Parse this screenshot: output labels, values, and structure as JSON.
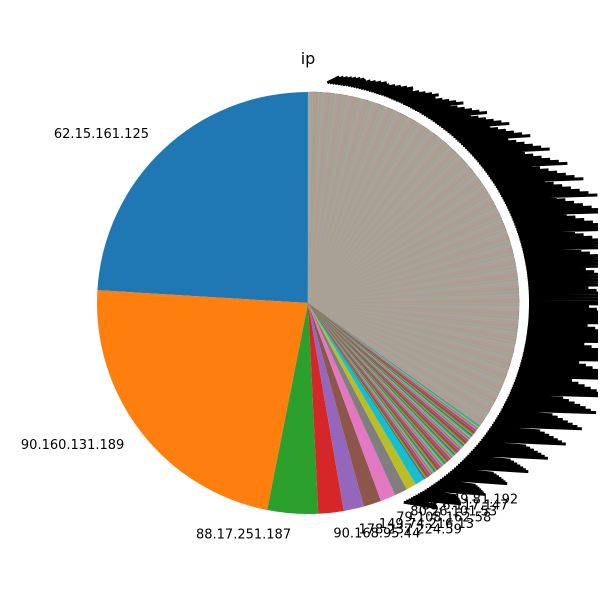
{
  "chart_data": {
    "type": "pie",
    "title": "ip",
    "start_angle_deg": 90,
    "direction": "counterclockwise",
    "slices": [
      {
        "label": "62.15.161.125",
        "value": 124,
        "color": "#1f77b4"
      },
      {
        "label": "90.160.131.189",
        "value": 118,
        "color": "#ff7f0e"
      },
      {
        "label": "88.17.251.187",
        "value": 20,
        "color": "#2ca02c"
      },
      {
        "label": "90.168.95.44",
        "value": 10,
        "color": "#d62728"
      },
      {
        "label": "178.237.224.59",
        "value": 8,
        "color": "#9467bd"
      },
      {
        "label": "149.74.216.13",
        "value": 7,
        "color": "#8c564b"
      },
      {
        "label": "79.108.162.58",
        "value": 6,
        "color": "#e377c2"
      },
      {
        "label": "80.26.101.53",
        "value": 5,
        "color": "#7f7f7f"
      },
      {
        "label": "88.6.117.147",
        "value": 4,
        "color": "#bcbd22"
      },
      {
        "label": "83.49.81.192",
        "value": 4,
        "color": "#17becf"
      }
    ],
    "other_slices": {
      "count": 420,
      "value_each": 0.5,
      "palette": [
        "#1f77b4",
        "#ff7f0e",
        "#2ca02c",
        "#d62728",
        "#9467bd",
        "#8c564b",
        "#e377c2",
        "#7f7f7f",
        "#bcbd22",
        "#17becf"
      ]
    },
    "grey_wedge_color": "#aca49a"
  }
}
